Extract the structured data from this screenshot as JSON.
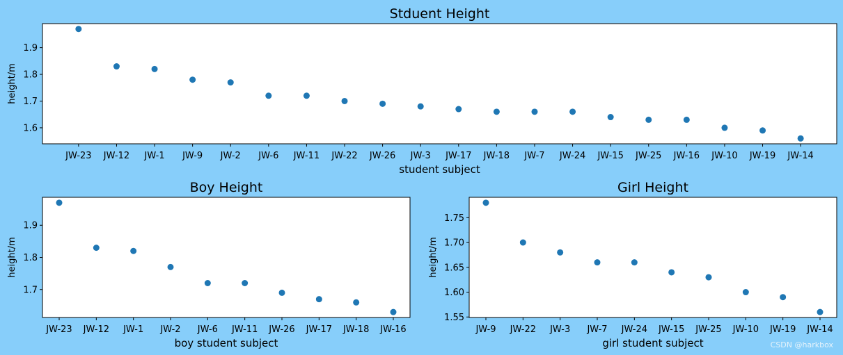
{
  "figure": {
    "background": "#87CEFA",
    "marker_color": "#1f77b4"
  },
  "watermark": "CSDN @harkbox",
  "chart_data": [
    {
      "type": "scatter",
      "title": "Stduent Height",
      "xlabel": "student subject",
      "ylabel": "height/m",
      "categories": [
        "JW-23",
        "JW-12",
        "JW-1",
        "JW-9",
        "JW-2",
        "JW-6",
        "JW-11",
        "JW-22",
        "JW-26",
        "JW-3",
        "JW-17",
        "JW-18",
        "JW-7",
        "JW-24",
        "JW-15",
        "JW-25",
        "JW-16",
        "JW-10",
        "JW-19",
        "JW-14"
      ],
      "values": [
        1.97,
        1.83,
        1.82,
        1.78,
        1.77,
        1.72,
        1.72,
        1.7,
        1.69,
        1.68,
        1.67,
        1.66,
        1.66,
        1.66,
        1.64,
        1.63,
        1.63,
        1.6,
        1.59,
        1.56
      ],
      "ylim": [
        1.54,
        1.99
      ],
      "yticks": [
        "1.6",
        "1.7",
        "1.8",
        "1.9"
      ],
      "grid": false,
      "legend": "none"
    },
    {
      "type": "scatter",
      "title": "Boy Height",
      "xlabel": "boy student subject",
      "ylabel": "height/m",
      "categories": [
        "JW-23",
        "JW-12",
        "JW-1",
        "JW-2",
        "JW-6",
        "JW-11",
        "JW-26",
        "JW-17",
        "JW-18",
        "JW-16"
      ],
      "values": [
        1.97,
        1.83,
        1.82,
        1.77,
        1.72,
        1.72,
        1.69,
        1.67,
        1.66,
        1.63
      ],
      "ylim": [
        1.613,
        1.987
      ],
      "yticks": [
        "1.7",
        "1.8",
        "1.9"
      ],
      "grid": false,
      "legend": "none"
    },
    {
      "type": "scatter",
      "title": "Girl Height",
      "xlabel": "girl student subject",
      "ylabel": "height/m",
      "categories": [
        "JW-9",
        "JW-22",
        "JW-3",
        "JW-7",
        "JW-24",
        "JW-15",
        "JW-25",
        "JW-10",
        "JW-19",
        "JW-14"
      ],
      "values": [
        1.78,
        1.7,
        1.68,
        1.66,
        1.66,
        1.64,
        1.63,
        1.6,
        1.59,
        1.56
      ],
      "ylim": [
        1.549,
        1.791
      ],
      "yticks": [
        "1.55",
        "1.60",
        "1.65",
        "1.70",
        "1.75"
      ],
      "grid": false,
      "legend": "none"
    }
  ]
}
